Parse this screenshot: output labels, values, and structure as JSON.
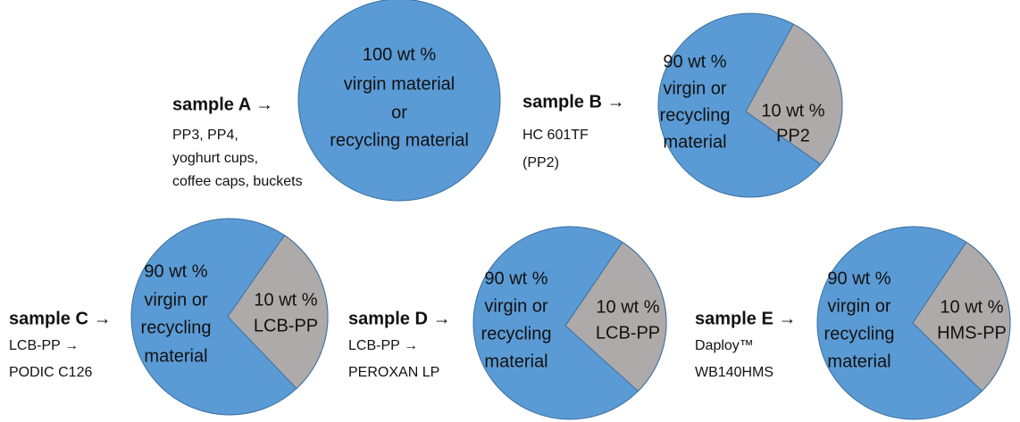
{
  "samples": [
    {
      "label": "sample A →",
      "description": [
        "PP3, PP4,",
        "yoghurt cups,",
        "coffee caps, buckets"
      ],
      "main": [
        "100 wt %",
        "virgin material",
        "or",
        "recycling material"
      ]
    },
    {
      "label": "sample B →",
      "description": [
        "HC 601TF",
        "(PP2)"
      ],
      "main": [
        "90 wt %",
        "virgin or",
        "recycling",
        "material"
      ],
      "slice": [
        "10 wt %",
        "PP2"
      ]
    },
    {
      "label": "sample C →",
      "description": [
        "LCB-PP →",
        "PODIC C126"
      ],
      "main": [
        "90 wt %",
        "virgin or",
        "recycling",
        "material"
      ],
      "slice": [
        "10 wt %",
        "LCB-PP"
      ]
    },
    {
      "label": "sample D →",
      "description": [
        "LCB-PP →",
        "PEROXAN LP"
      ],
      "main": [
        "90 wt %",
        "virgin or",
        "recycling",
        "material"
      ],
      "slice": [
        "10 wt %",
        "LCB-PP"
      ]
    },
    {
      "label": "sample E →",
      "description": [
        "Daploy™",
        "WB140HMS"
      ],
      "main": [
        "90 wt %",
        "virgin or",
        "recycling",
        "material"
      ],
      "slice": [
        "10 wt %",
        "HMS-PP"
      ]
    }
  ]
}
